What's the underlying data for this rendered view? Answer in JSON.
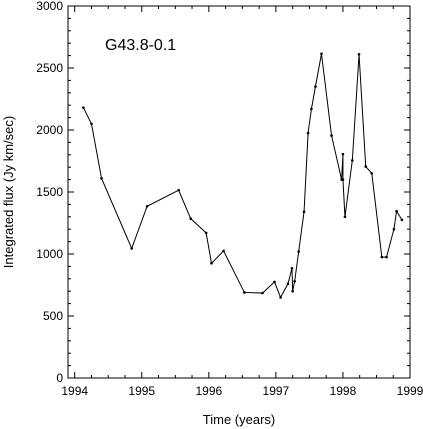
{
  "chart_data": {
    "type": "line",
    "title": "",
    "annotation": "G43.8-0.1",
    "xlabel": "Time (years)",
    "ylabel": "Integrated flux (Jy km/sec)",
    "xlim": [
      1993.9,
      1999.0
    ],
    "ylim": [
      0,
      3000
    ],
    "xticks": [
      1994,
      1995,
      1996,
      1997,
      1998,
      1999
    ],
    "yticks": [
      0,
      500,
      1000,
      1500,
      2000,
      2500,
      3000
    ],
    "xtick_labels": [
      "1994",
      "1995",
      "1996",
      "1997",
      "1998",
      "1999"
    ],
    "ytick_labels": [
      "0",
      "500",
      "1000",
      "1500",
      "2000",
      "2500",
      "3000"
    ],
    "grid": false,
    "series": [
      {
        "color": "#000000",
        "marker": "dot",
        "points": [
          [
            1994.13,
            2180
          ],
          [
            1994.25,
            2050
          ],
          [
            1994.4,
            1610
          ],
          [
            1994.85,
            1045
          ],
          [
            1995.08,
            1385
          ],
          [
            1995.55,
            1515
          ],
          [
            1995.73,
            1285
          ],
          [
            1995.96,
            1170
          ],
          [
            1996.04,
            925
          ],
          [
            1996.22,
            1025
          ],
          [
            1996.53,
            690
          ],
          [
            1996.8,
            685
          ],
          [
            1996.98,
            775
          ],
          [
            1997.07,
            650
          ],
          [
            1997.18,
            760
          ],
          [
            1997.24,
            885
          ],
          [
            1997.25,
            700
          ],
          [
            1997.28,
            780
          ],
          [
            1997.34,
            1020
          ],
          [
            1997.42,
            1340
          ],
          [
            1997.48,
            1975
          ],
          [
            1997.53,
            2170
          ],
          [
            1997.59,
            2350
          ],
          [
            1997.68,
            2615
          ],
          [
            1997.83,
            1955
          ],
          [
            1997.98,
            1600
          ],
          [
            1998.0,
            1805
          ],
          [
            1998.0,
            1600
          ],
          [
            1998.03,
            1300
          ],
          [
            1998.14,
            1755
          ],
          [
            1998.24,
            2610
          ],
          [
            1998.34,
            1705
          ],
          [
            1998.43,
            1650
          ],
          [
            1998.58,
            975
          ],
          [
            1998.65,
            975
          ],
          [
            1998.76,
            1200
          ],
          [
            1998.8,
            1345
          ],
          [
            1998.88,
            1275
          ]
        ]
      }
    ]
  }
}
